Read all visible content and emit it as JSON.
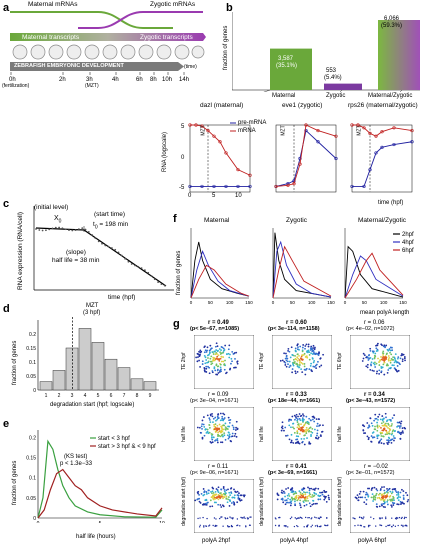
{
  "panels": {
    "a": {
      "letter": "a",
      "maternal_mrnas": "Maternal mRNAs",
      "zygotic_mrnas": "Zygotic mRNAs",
      "maternal_transcripts": "Maternal transcripts",
      "zygotic_transcripts": "Zygotic transcripts",
      "development_label": "ZEBRAFISH EMBRYONIC DEVELOPMENT",
      "time_unit": "(time)",
      "ticks": [
        "0h",
        "2h",
        "3h",
        "4h",
        "6h",
        "8h",
        "10h",
        "14h"
      ],
      "fertilization": "(fertilization)",
      "mzt": "(MZT)"
    },
    "b": {
      "letter": "b",
      "ylabel": "fraction of genes",
      "chart_data": {
        "type": "bar",
        "categories": [
          "Maternal",
          "Zygotic",
          "Maternal/Zygotic"
        ],
        "values": [
          3587,
          553,
          6066
        ],
        "percent_labels": [
          "(35.1%)",
          "(5.4%)",
          "(59.3%)"
        ],
        "count_labels": [
          "3,587",
          "553",
          "6,066"
        ],
        "colors": [
          "#6aa83a",
          "#7b3aa0",
          "#a0c050"
        ]
      },
      "subplots": [
        {
          "title": "dazl (maternal)",
          "mzt": "MZT"
        },
        {
          "title": "eve1 (zygotic)",
          "mzt": "MZT"
        },
        {
          "title": "rps26 (maternal/zygotic)",
          "mzt": "MZT"
        }
      ],
      "legend": [
        "pre-mRNA",
        "mRNA"
      ],
      "ylabel_sub": "RNA (logscale)",
      "xlabel_sub": "time (hpf)",
      "yticks": [
        "5",
        "0",
        "-5"
      ],
      "xticks": [
        "0",
        "5",
        "10"
      ]
    },
    "c": {
      "letter": "c",
      "ylabel": "RNA expression (RNA/cell)",
      "xlabel": "time (hpf)",
      "initial_level": "(initial level)",
      "x0": "X",
      "x0_sub": "0",
      "start_time": "(start time)",
      "t0": "t",
      "t0_sub": "0",
      "t0_value": "= 198 min",
      "slope": "(slope)",
      "half_life": "half life = 38 min"
    },
    "d": {
      "letter": "d",
      "mzt": "MZT",
      "mzt_hpf": "(3 hpf)",
      "ylabel": "fraction of genes",
      "xlabel": "degradation start (hpf; logscale)",
      "chart_data": {
        "type": "bar",
        "categories": [
          "1",
          "2",
          "3",
          "4",
          "5",
          "6",
          "7",
          "8",
          "9"
        ],
        "values": [
          0.03,
          0.07,
          0.15,
          0.22,
          0.17,
          0.11,
          0.08,
          0.04,
          0.03
        ],
        "yticks": [
          "0",
          "0.05",
          "0.1",
          "0.15",
          "0.2"
        ],
        "ylim": [
          0,
          0.25
        ]
      }
    },
    "e": {
      "letter": "e",
      "ylabel": "fraction of genes",
      "xlabel": "half life (hours)",
      "ks_test": "(KS test)",
      "pvalue": "p < 1.3e−33",
      "legend": [
        "start < 3 hpf",
        "start > 3 hpf & < 9 hpf"
      ],
      "xticks": [
        "0",
        "5",
        "10"
      ],
      "yticks": [
        "0",
        "0.05",
        "0.1",
        "0.15",
        "0.2"
      ],
      "colors": [
        "#3aa040",
        "#a02020"
      ]
    },
    "f": {
      "letter": "f",
      "titles": [
        "Maternal",
        "Zygotic",
        "Maternal/Zygotic"
      ],
      "ylabel": "fraction of genes",
      "xlabel": "mean polyA length",
      "xticks": [
        "0",
        "50",
        "100",
        "150"
      ],
      "legend": [
        "2hpf",
        "4hpf",
        "6hpf"
      ],
      "colors": [
        "#000000",
        "#3030c0",
        "#c02020"
      ]
    },
    "g": {
      "letter": "g",
      "rows": [
        {
          "ylabels": [
            "TE 2hpf",
            "TE 4hpf",
            "TE 6hpf"
          ],
          "stats": [
            {
              "r": "r = 0.49",
              "p": "(p< 5e−67, n=1085)",
              "bold": true
            },
            {
              "r": "r = 0.60",
              "p": "(p< 3e−114, n=1158)",
              "bold": true
            },
            {
              "r": "r = 0.06",
              "p": "(p< 4e−02, n=1072)",
              "bold": false
            }
          ]
        },
        {
          "ylabels": [
            "half life",
            "half life",
            "half life"
          ],
          "stats": [
            {
              "r": "r = 0.09",
              "p": "(p< 3e−04, n=1671)",
              "bold": false
            },
            {
              "r": "r = 0.33",
              "p": "(p< 18e−44, n=1661)",
              "bold": true
            },
            {
              "r": "r = 0.34",
              "p": "(p< 3e−43, n=1572)",
              "bold": true
            }
          ]
        },
        {
          "ylabels": [
            "degradation start (hpf)",
            "degradation start (hpf)",
            "degradation start (hpf)"
          ],
          "stats": [
            {
              "r": "r = 0.11",
              "p": "(p< 9e−06, n=1671)",
              "bold": false
            },
            {
              "r": "r = 0.41",
              "p": "(p< 3e−69, n=1661)",
              "bold": true
            },
            {
              "r": "r = −0.02",
              "p": "(p< 3e−01, n=1572)",
              "bold": false
            }
          ]
        }
      ],
      "xlabels": [
        "polyA 2hpf",
        "polyA 4hpf",
        "polyA 6hpf"
      ]
    }
  }
}
